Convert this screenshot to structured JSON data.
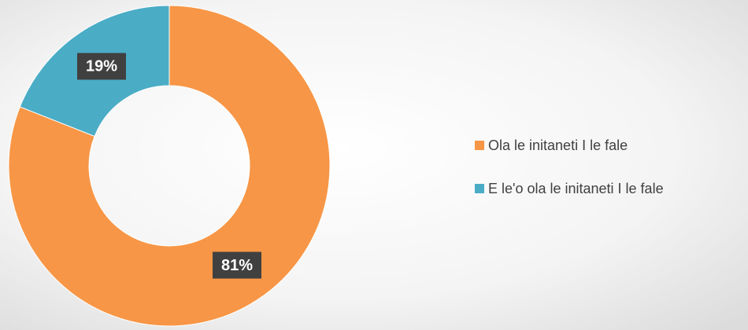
{
  "chart_data": {
    "type": "donut",
    "categories": [
      "Ola le initaneti I le fale",
      "E le'o ola le initaneti I le fale"
    ],
    "values": [
      81,
      19
    ],
    "value_labels": [
      "81%",
      "19%"
    ],
    "colors": [
      "#F79646",
      "#4BACC6"
    ],
    "legend": "right"
  }
}
